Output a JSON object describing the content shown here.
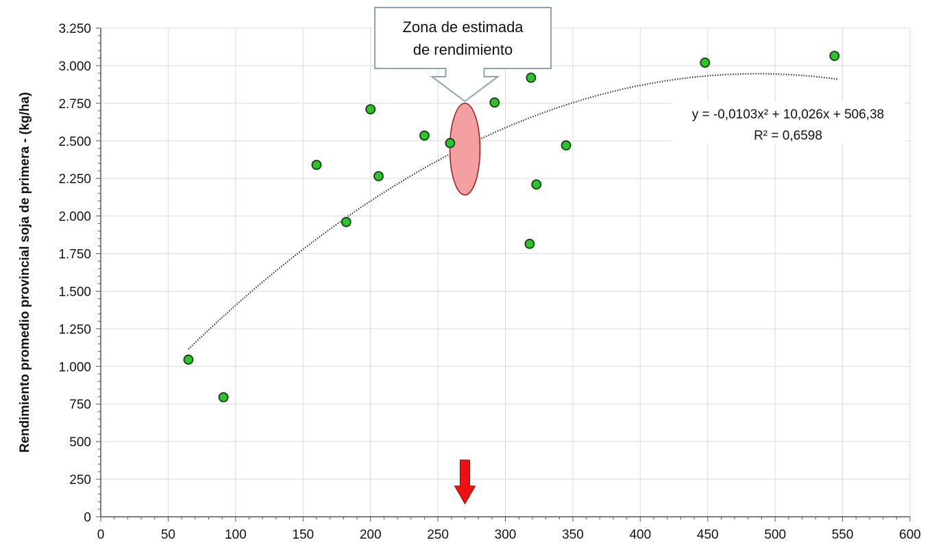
{
  "chart_data": {
    "type": "scatter",
    "title": "",
    "xlabel": "",
    "ylabel": "Rendimiento promedio provincial soja de primera - (kg/ha)",
    "xlim": [
      0,
      600
    ],
    "ylim": [
      0,
      3250
    ],
    "x_ticks": [
      0,
      50,
      100,
      150,
      200,
      250,
      300,
      350,
      400,
      450,
      500,
      550,
      600
    ],
    "x_tick_labels": [
      "0",
      "50",
      "100",
      "150",
      "200",
      "250",
      "300",
      "350",
      "400",
      "450",
      "500",
      "550",
      "600"
    ],
    "y_ticks": [
      0,
      250,
      500,
      750,
      1000,
      1250,
      1500,
      1750,
      2000,
      2250,
      2500,
      2750,
      3000,
      3250
    ],
    "y_tick_labels": [
      "0",
      "250",
      "500",
      "750",
      "1.000",
      "1.250",
      "1.500",
      "1.750",
      "2.000",
      "2.250",
      "2.500",
      "2.750",
      "3.000",
      "3.250"
    ],
    "grid": true,
    "series": [
      {
        "points": [
          {
            "x": 65,
            "y": 1045
          },
          {
            "x": 91,
            "y": 795
          },
          {
            "x": 160,
            "y": 2340
          },
          {
            "x": 182,
            "y": 1960
          },
          {
            "x": 200,
            "y": 2710
          },
          {
            "x": 206,
            "y": 2265
          },
          {
            "x": 240,
            "y": 2535
          },
          {
            "x": 259,
            "y": 2485
          },
          {
            "x": 292,
            "y": 2755
          },
          {
            "x": 318,
            "y": 1815
          },
          {
            "x": 319,
            "y": 2920
          },
          {
            "x": 323,
            "y": 2210
          },
          {
            "x": 345,
            "y": 2470
          },
          {
            "x": 448,
            "y": 3020
          },
          {
            "x": 544,
            "y": 3065
          }
        ],
        "color": "#2ec22e"
      }
    ],
    "trendline": {
      "type": "polynomial",
      "coefficients": [
        -0.0103,
        10.026,
        506.38
      ],
      "x_range": [
        65,
        547
      ],
      "equation_label": "y = -0,0103x² + 10,026x + 506,38",
      "r2_label": "R² = 0,6598"
    },
    "annotations": {
      "callout_line1": "Zona de estimada",
      "callout_line2": "de rendimiento",
      "estimate_zone": {
        "x": 270,
        "y_min": 2140,
        "y_max": 2750
      },
      "arrow_x": 270
    },
    "colors": {
      "point_fill": "#2ec22e",
      "point_stroke": "#0d3d0d",
      "zone_fill": "#f5a0a0",
      "zone_stroke": "#9a1c1c",
      "arrow": "#ee1111",
      "callout_stroke": "#8aa3b8",
      "grid": "#d9d9d9"
    }
  }
}
